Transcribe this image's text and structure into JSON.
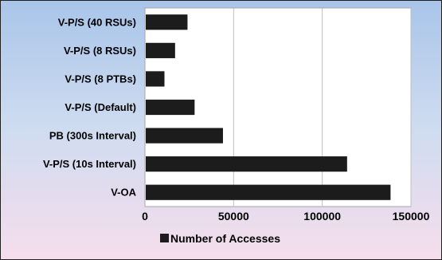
{
  "chart_data": {
    "type": "bar",
    "orientation": "horizontal",
    "categories": [
      "V-P/S (40 RSUs)",
      "V-P/S (8 RSUs)",
      "V-P/S (8 PTBs)",
      "V-P/S (Default)",
      "PB (300s Interval)",
      "V-P/S (10s Interval)",
      "V-OA"
    ],
    "series": [
      {
        "name": "Number of Accesses",
        "values": [
          24000,
          17000,
          11000,
          28000,
          44000,
          114000,
          138500
        ]
      }
    ],
    "xlim": [
      0,
      150000
    ],
    "xticks": [
      0,
      50000,
      100000,
      150000
    ],
    "xtick_labels": [
      "0",
      "50000",
      "100000",
      "150000"
    ],
    "grid": "vertical",
    "legend_position": "bottom",
    "bar_color": "#1c1c1c"
  }
}
